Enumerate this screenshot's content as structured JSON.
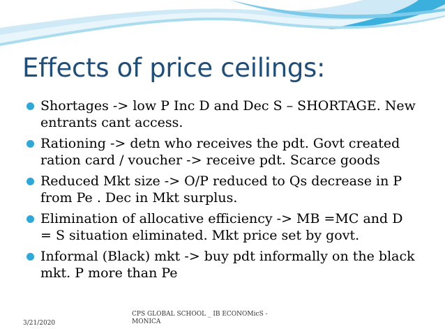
{
  "slide": {
    "title": "Effects of price ceilings:",
    "bullets": [
      "Shortages -> low P Inc D and Dec S – SHORTAGE. New entrants cant access.",
      "Rationing -> detn who receives the pdt. Govt created ration card / voucher -> receive pdt. Scarce goods",
      "Reduced Mkt size -> O/P reduced to Qs decrease in P from Pe . Dec in Mkt surplus.",
      "Elimination of allocative efficiency -> MB =MC and D = S situation eliminated. Mkt price set by govt.",
      "Informal (Black) mkt -> buy pdt informally on the black mkt. P more than Pe"
    ],
    "footer": {
      "date": "3/21/2020",
      "center_text": "CPS GLOBAL SCHOOL _ IB ECONOMicS - MONICA"
    }
  },
  "colors": {
    "title": "#1e4e79",
    "bullet_marker": "#2ea8d8",
    "wave_dark": "#3bb0dd",
    "wave_light": "#cfeaf6"
  }
}
